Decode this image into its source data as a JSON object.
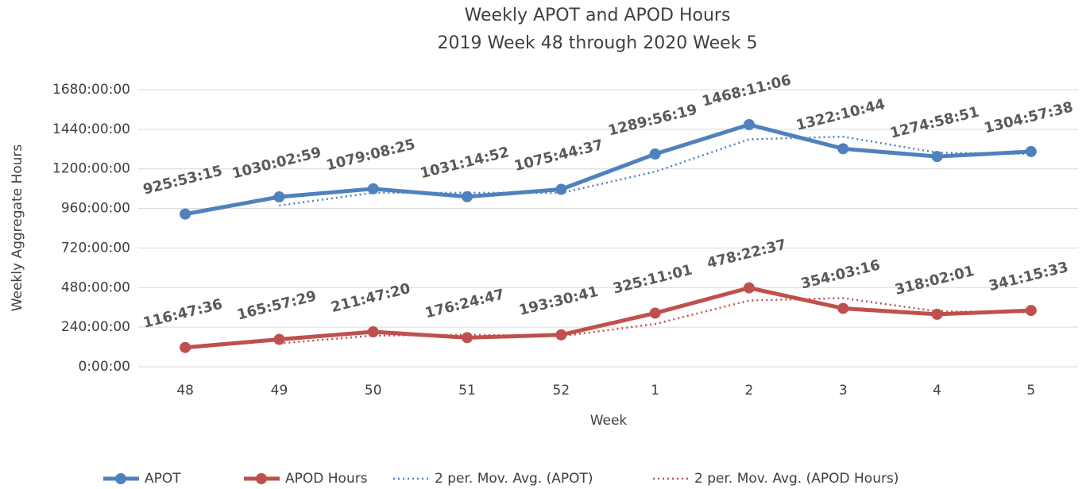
{
  "chart_data": {
    "type": "line",
    "title": "Weekly APOT and APOD Hours",
    "subtitle": "2019 Week 48 through 2020 Week 5",
    "x_label": "Week",
    "y_label": "Weekly Aggregate Hours",
    "categories": [
      "48",
      "49",
      "50",
      "51",
      "52",
      "1",
      "2",
      "3",
      "4",
      "5"
    ],
    "ylim": [
      0,
      1680
    ],
    "yticks": [
      {
        "value": 0,
        "label": "0:00:00"
      },
      {
        "value": 240,
        "label": "240:00:00"
      },
      {
        "value": 480,
        "label": "480:00:00"
      },
      {
        "value": 720,
        "label": "720:00:00"
      },
      {
        "value": 960,
        "label": "960:00:00"
      },
      {
        "value": 1200,
        "label": "1200:00:00"
      },
      {
        "value": 1440,
        "label": "1440:00:00"
      },
      {
        "value": 1680,
        "label": "1680:00:00"
      }
    ],
    "grid": true,
    "legend": "bottom",
    "series": [
      {
        "name": "APOT",
        "color": "#4f81bd",
        "style": "solid",
        "markers": true,
        "values": [
          925.8875,
          1030.049722,
          1079.140278,
          1031.247778,
          1075.743611,
          1289.938611,
          1468.185,
          1322.178889,
          1274.980833,
          1304.960556
        ],
        "value_labels": [
          "925:53:15",
          "1030:02:59",
          "1079:08:25",
          "1031:14:52",
          "1075:44:37",
          "1289:56:19",
          "1468:11:06",
          "1322:10:44",
          "1274:58:51",
          "1304:57:38"
        ]
      },
      {
        "name": "APOD Hours",
        "color": "#c0504d",
        "style": "solid",
        "markers": true,
        "values": [
          116.793333,
          165.958056,
          211.788889,
          176.413056,
          193.511389,
          325.183611,
          478.376944,
          354.054444,
          318.033611,
          341.259167
        ],
        "value_labels": [
          "116:47:36",
          "165:57:29",
          "211:47:20",
          "176:24:47",
          "193:30:41",
          "325:11:01",
          "478:22:37",
          "354:03:16",
          "318:02:01",
          "341:15:33"
        ]
      },
      {
        "name": "2 per. Mov. Avg. (APOT)",
        "color": "#4f81bd",
        "style": "dotted",
        "markers": false,
        "values": [
          null,
          977.97,
          1054.6,
          1055.19,
          1053.5,
          1182.84,
          1379.06,
          1395.18,
          1298.58,
          1289.97
        ]
      },
      {
        "name": "2 per. Mov. Avg. (APOD Hours)",
        "color": "#c0504d",
        "style": "dotted",
        "markers": false,
        "values": [
          null,
          141.38,
          188.87,
          194.1,
          184.96,
          259.35,
          401.78,
          416.22,
          336.04,
          329.65
        ]
      }
    ]
  }
}
